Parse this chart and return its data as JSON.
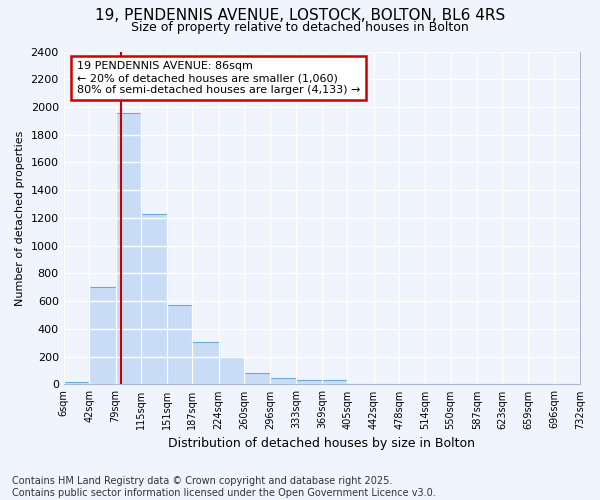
{
  "title_line1": "19, PENDENNIS AVENUE, LOSTOCK, BOLTON, BL6 4RS",
  "title_line2": "Size of property relative to detached houses in Bolton",
  "xlabel": "Distribution of detached houses by size in Bolton",
  "ylabel": "Number of detached properties",
  "footer_line1": "Contains HM Land Registry data © Crown copyright and database right 2025.",
  "footer_line2": "Contains public sector information licensed under the Open Government Licence v3.0.",
  "annotation_line1": "19 PENDENNIS AVENUE: 86sqm",
  "annotation_line2": "← 20% of detached houses are smaller (1,060)",
  "annotation_line3": "80% of semi-detached houses are larger (4,133) →",
  "property_size": 86,
  "bin_edges": [
    6,
    42,
    79,
    115,
    151,
    187,
    224,
    260,
    296,
    333,
    369,
    405,
    442,
    478,
    514,
    550,
    587,
    623,
    659,
    696,
    732
  ],
  "bin_counts": [
    20,
    700,
    1960,
    1230,
    575,
    305,
    195,
    80,
    45,
    35,
    35,
    5,
    5,
    3,
    3,
    3,
    3,
    3,
    3,
    3
  ],
  "bar_color": "#c8ddf5",
  "bar_edge_color": "#6aabd6",
  "red_line_color": "#cc0000",
  "background_color": "#f0f4fc",
  "grid_color": "#ffffff",
  "annotation_box_edge_color": "#cc0000",
  "annotation_box_face_color": "#ffffff",
  "ylim": [
    0,
    2400
  ],
  "yticks": [
    0,
    200,
    400,
    600,
    800,
    1000,
    1200,
    1400,
    1600,
    1800,
    2000,
    2200,
    2400
  ],
  "title_fontsize": 11,
  "subtitle_fontsize": 9,
  "ylabel_fontsize": 8,
  "xlabel_fontsize": 9,
  "footer_fontsize": 7
}
